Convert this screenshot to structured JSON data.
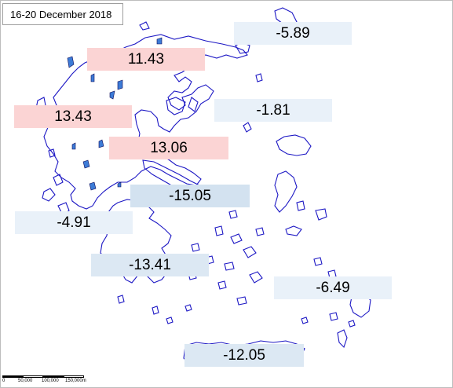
{
  "title": "16-20 December 2018",
  "map": {
    "outline_color": "#1c17c4",
    "lake_color": "#3d7bd6",
    "positive_fill": "#fbd4d4",
    "negative_fill": "#dce8f3"
  },
  "labels": [
    {
      "id": "ne",
      "value": "-5.89"
    },
    {
      "id": "nw",
      "value": "11.43"
    },
    {
      "id": "w",
      "value": "13.43"
    },
    {
      "id": "c-aegean",
      "value": "-1.81"
    },
    {
      "id": "c",
      "value": "13.06"
    },
    {
      "id": "attica",
      "value": "-15.05"
    },
    {
      "id": "sw",
      "value": "-4.91"
    },
    {
      "id": "s",
      "value": "-13.41"
    },
    {
      "id": "se",
      "value": "-6.49"
    },
    {
      "id": "crete",
      "value": "-12.05"
    }
  ],
  "scale": {
    "ticks": [
      "0",
      "50,000",
      "100,000",
      "150,000m"
    ]
  }
}
